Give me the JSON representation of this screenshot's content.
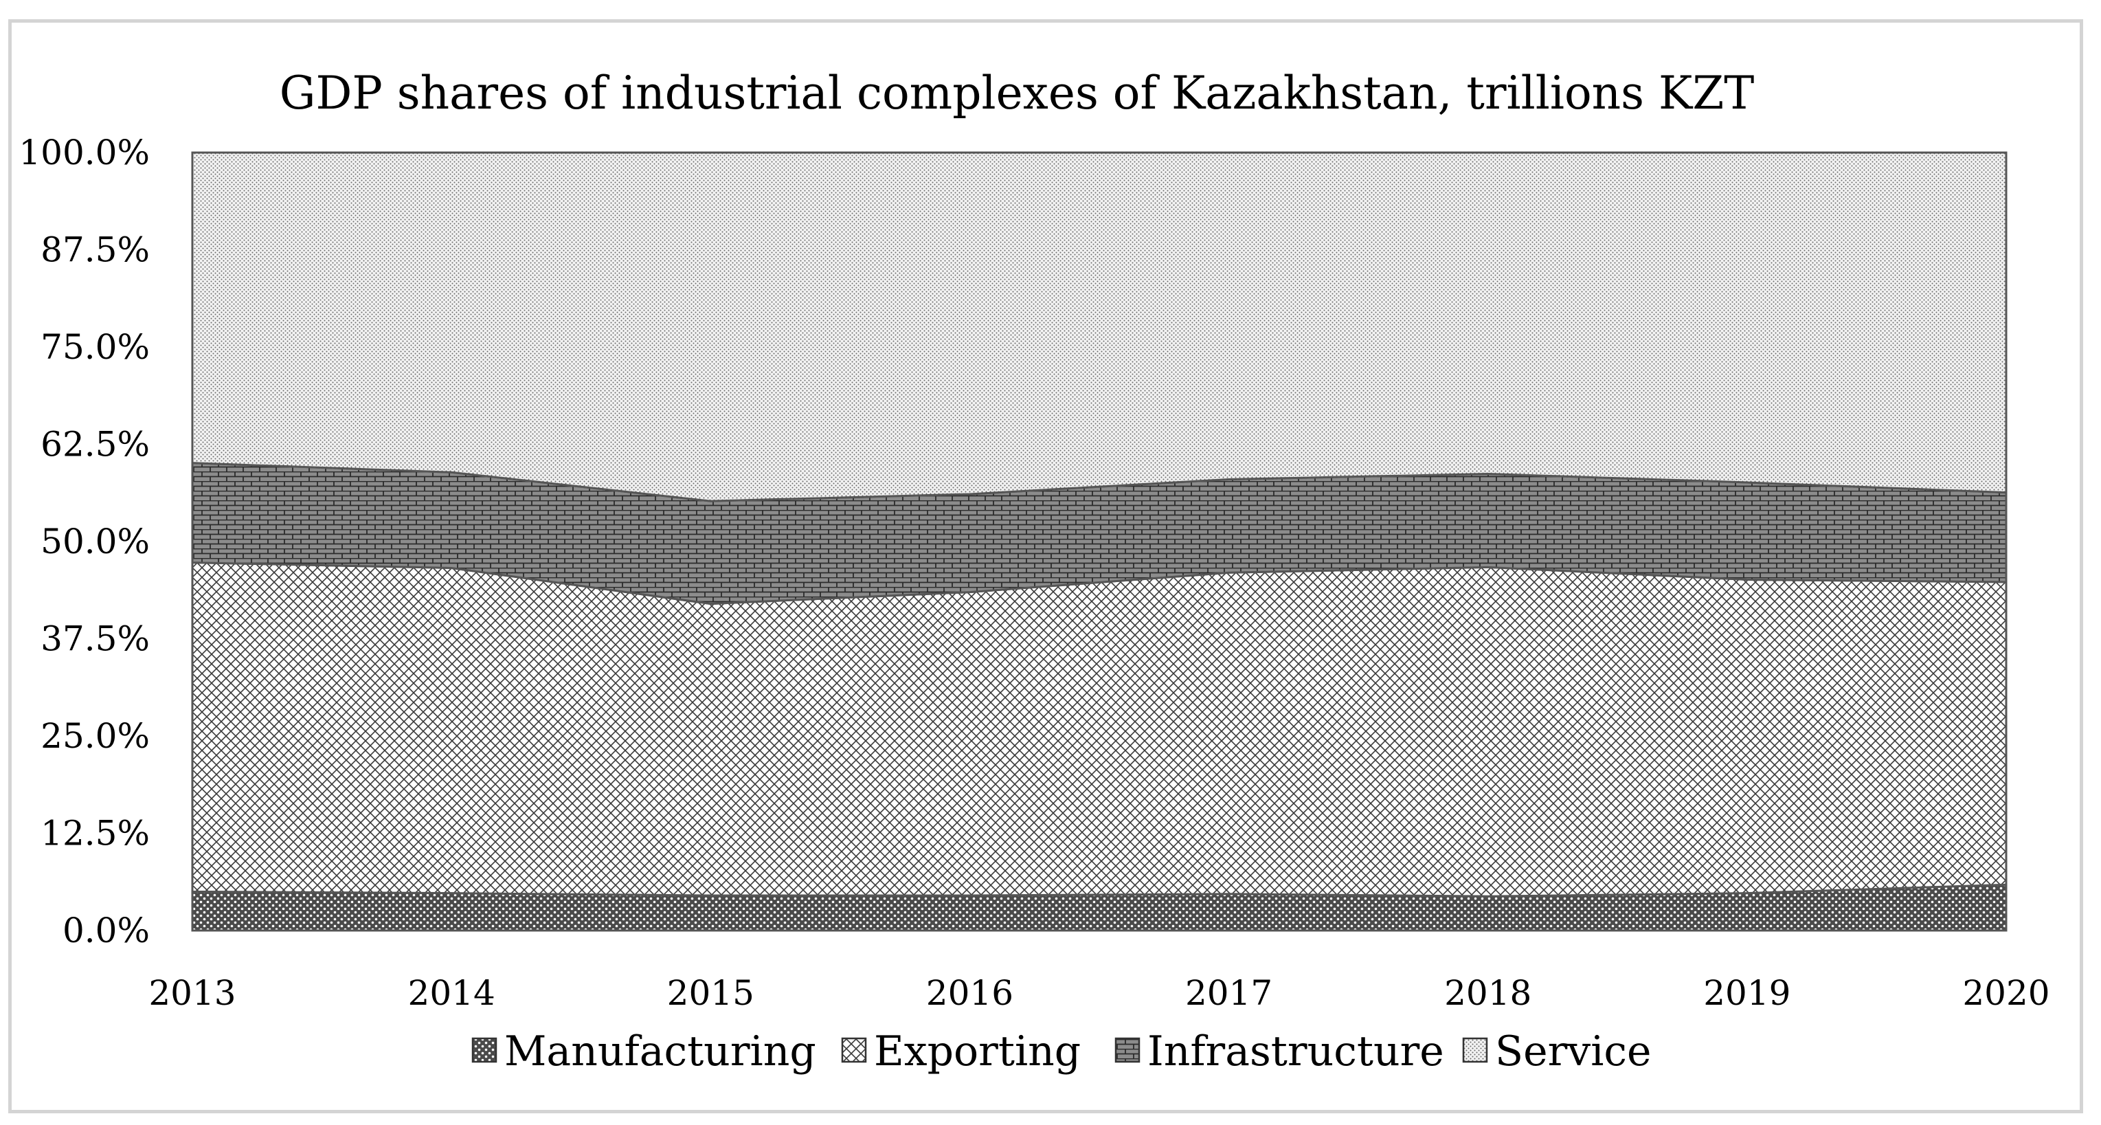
{
  "chart_data": {
    "type": "area",
    "stacked": true,
    "normalized": true,
    "title": "GDP shares of industrial complexes of Kazakhstan, trillions KZT",
    "xlabel": "",
    "ylabel": "",
    "categories": [
      "2013",
      "2014",
      "2015",
      "2016",
      "2017",
      "2018",
      "2019",
      "2020"
    ],
    "y_ticks": [
      "0.0%",
      "12.5%",
      "25.0%",
      "37.5%",
      "50.0%",
      "62.5%",
      "75.0%",
      "87.5%",
      "100.0%"
    ],
    "ylim": [
      0,
      100
    ],
    "grid": false,
    "legend_position": "bottom",
    "series": [
      {
        "name": "Manufacturing",
        "pattern": "dense-dots",
        "values": [
          5.0,
          4.8,
          4.5,
          4.5,
          4.7,
          4.4,
          4.8,
          5.9
        ]
      },
      {
        "name": "Exporting",
        "pattern": "crosshatch",
        "values": [
          42.3,
          41.8,
          37.5,
          39.0,
          41.3,
          42.3,
          40.3,
          38.9
        ]
      },
      {
        "name": "Infrastructure",
        "pattern": "brick",
        "values": [
          12.8,
          12.3,
          13.2,
          12.6,
          12.0,
          12.0,
          12.5,
          11.5
        ]
      },
      {
        "name": "Service",
        "pattern": "fine-dots",
        "values": [
          39.9,
          41.1,
          44.8,
          43.9,
          42.0,
          41.3,
          42.4,
          43.7
        ]
      }
    ]
  }
}
